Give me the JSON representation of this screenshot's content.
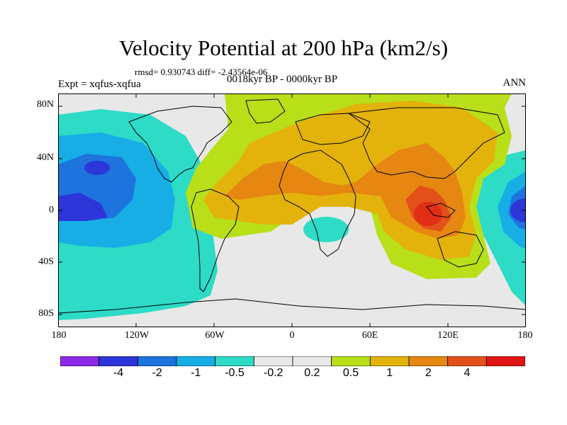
{
  "title": "Velocity Potential at 200 hPa (km2/s)",
  "stats": "rmsd= 0.930743 diff= -2.43564e-06",
  "left_label": "Expt = xqfus-xqfua",
  "center_label": "0018kyr BP - 0000kyr BP",
  "right_label": "ANN",
  "y_ticks": [
    "80N",
    "40N",
    "0",
    "40S",
    "80S"
  ],
  "x_ticks": [
    "180",
    "120W",
    "60W",
    "0",
    "60E",
    "120E",
    "180"
  ],
  "colorbar": {
    "colors": [
      "#8c2ae6",
      "#2d36d8",
      "#1d74dd",
      "#17aee6",
      "#2ddbc7",
      "#e8e8e8",
      "#e8e8e8",
      "#b8df18",
      "#e3b30b",
      "#e68712",
      "#e2511a",
      "#e01414"
    ],
    "labels": [
      "-4",
      "-2",
      "-1",
      "-0.5",
      "-0.2",
      "0.2",
      "0.5",
      "1",
      "2",
      "4"
    ]
  }
}
